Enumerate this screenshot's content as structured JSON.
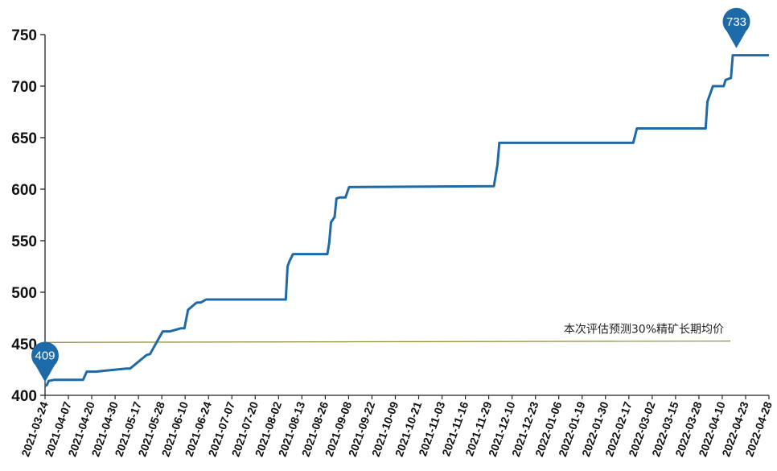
{
  "chart_data": {
    "type": "line",
    "title": "",
    "xlabel": "",
    "ylabel": "",
    "ylim": [
      400,
      750
    ],
    "yticks": [
      "400",
      "450",
      "500",
      "550",
      "600",
      "650",
      "700",
      "750"
    ],
    "xticks": [
      "2021-03-24",
      "2021-04-07",
      "2021-04-20",
      "2021-04-30",
      "2021-05-17",
      "2021-05-28",
      "2021-06-10",
      "2021-06-24",
      "2021-07-07",
      "2021-07-20",
      "2021-08-02",
      "2021-08-13",
      "2021-08-26",
      "2021-09-08",
      "2021-09-22",
      "2021-10-09",
      "2021-10-21",
      "2021-11-03",
      "2021-11-16",
      "2021-11-29",
      "2021-12-10",
      "2021-12-23",
      "2022-01-06",
      "2022-01-19",
      "2022-01-30",
      "2022-02-17",
      "2022-03-02",
      "2022-03-15",
      "2022-03-28",
      "2022-04-10",
      "2022-04-23",
      "2022-04-28"
    ],
    "series": [
      {
        "x": [
          "2021-03-24",
          "2021-03-25",
          "2021-03-26",
          "2021-03-29",
          "2021-04-14",
          "2021-04-16",
          "2021-04-21",
          "2021-05-08",
          "2021-05-10",
          "2021-05-19",
          "2021-05-21",
          "2021-05-28",
          "2021-06-01",
          "2021-06-07",
          "2021-06-09",
          "2021-06-11",
          "2021-06-15",
          "2021-06-16",
          "2021-06-18",
          "2021-06-21",
          "2021-06-23",
          "2021-08-04",
          "2021-08-05",
          "2021-08-06",
          "2021-08-08",
          "2021-08-27",
          "2021-08-28",
          "2021-08-29",
          "2021-08-31",
          "2021-09-01",
          "2021-09-03",
          "2021-09-06",
          "2021-09-08",
          "2021-11-27",
          "2021-11-29",
          "2021-11-30",
          "2022-02-12",
          "2022-02-14",
          "2022-03-24",
          "2022-03-25",
          "2022-03-28",
          "2022-03-29",
          "2022-04-03",
          "2022-04-04",
          "2022-04-07",
          "2022-04-08",
          "2022-04-28"
        ],
        "values": [
          409,
          410,
          414,
          415,
          415,
          423,
          423,
          426,
          426,
          439,
          440,
          462,
          462,
          465,
          465,
          483,
          489,
          490,
          490,
          493,
          493,
          493,
          525,
          530,
          537,
          537,
          548,
          568,
          573,
          591,
          592,
          592,
          602,
          603,
          624,
          645,
          645,
          659,
          659,
          685,
          700,
          700,
          700,
          706,
          708,
          730,
          730
        ],
        "color": "#1f6aa5"
      }
    ],
    "reference_line": {
      "value": 452,
      "label": "本次评估预测30%精矿长期均价",
      "color": "#8c8c3a"
    },
    "callouts": [
      {
        "label": "409",
        "x": "2021-03-24",
        "value": 409
      },
      {
        "label": "733",
        "x": "2022-04-10",
        "value": 733
      }
    ],
    "colors": {
      "line": "#1f6aa5",
      "pin": "#1d6aa8",
      "axis": "#222222",
      "reference": "#8c8c3a"
    },
    "grid": false,
    "legend": "none"
  }
}
